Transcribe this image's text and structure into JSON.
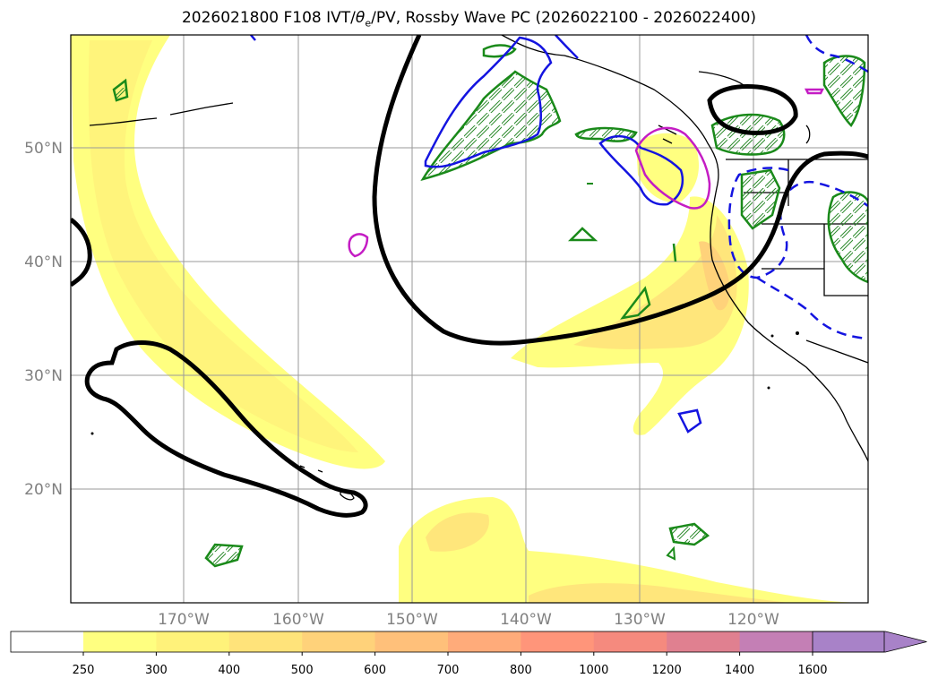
{
  "title": {
    "prefix": "2026021800 F108 IVT/",
    "theta": "θ",
    "theta_sub": "e",
    "suffix": "/PV, Rossby Wave PC (2026022100 - 2026022400)"
  },
  "axes": {
    "lon_labels": [
      "170°W",
      "160°W",
      "150°W",
      "140°W",
      "130°W",
      "120°W"
    ],
    "lat_labels": [
      "20°N",
      "30°N",
      "40°N",
      "50°N"
    ]
  },
  "colorbar": {
    "labels": [
      "250",
      "300",
      "400",
      "500",
      "600",
      "700",
      "800",
      "1000",
      "1200",
      "1400",
      "1600"
    ],
    "colors": [
      "#ffff80",
      "#fff27a",
      "#ffe37a",
      "#ffd27a",
      "#ffc07a",
      "#ffab7a",
      "#ff957a",
      "#f58a7e",
      "#e08090",
      "#c47fb5",
      "#a882c8"
    ]
  }
}
